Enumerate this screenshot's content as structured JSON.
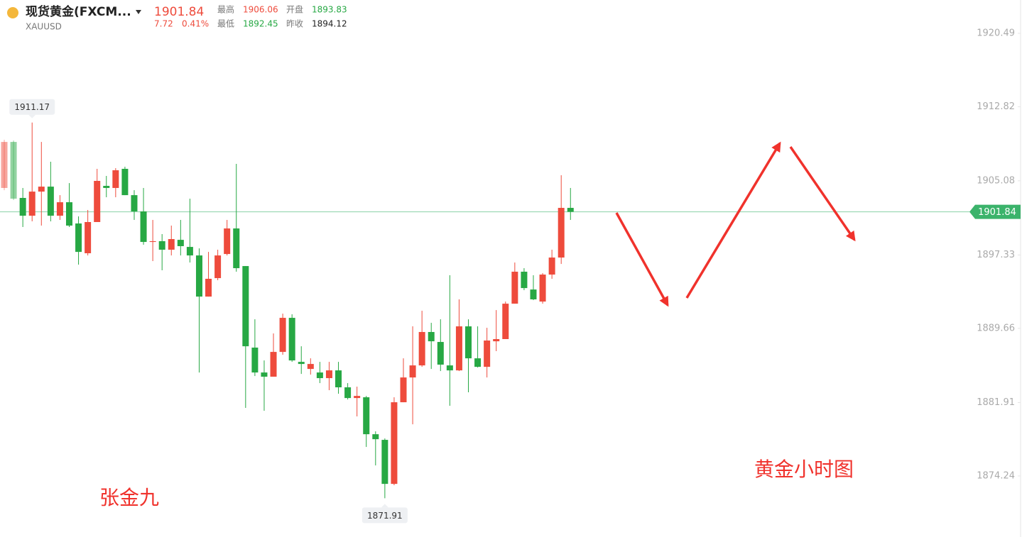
{
  "header": {
    "name": "现货黄金(FXCM...",
    "symbol": "XAUUSD",
    "price": "1901.84",
    "change": "7.72",
    "change_pct": "0.41%",
    "high_label": "最高",
    "high": "1906.06",
    "open_label": "开盘",
    "open": "1893.83",
    "low_label": "最低",
    "low": "1892.45",
    "prev_close_label": "昨收",
    "prev_close": "1894.12"
  },
  "chart_data": {
    "type": "candlestick",
    "up_color": "#ee4b3c",
    "down_color": "#27a844",
    "open": [
      1904.33,
      1909.14,
      1903.29,
      1901.43,
      1903.95,
      1904.47,
      1901.43,
      1902.84,
      1900.62,
      1897.51,
      1900.77,
      1904.55,
      1904.33,
      1906.33,
      1903.58,
      1901.88,
      1898.69,
      1898.77,
      1897.88,
      1898.91,
      1898.17,
      1897.28,
      1892.98,
      1894.91,
      1897.43,
      1900.1,
      1896.17,
      1887.65,
      1885.05,
      1884.61,
      1887.2,
      1890.76,
      1886.16,
      1885.42,
      1885.05,
      1884.46,
      1885.27,
      1883.5,
      1882.38,
      1882.46,
      1878.6,
      1878.01,
      1873.41,
      1881.94,
      1884.53,
      1885.79,
      1889.28,
      1888.24,
      1885.79,
      1885.27,
      1889.87,
      1886.53,
      1885.64,
      1888.31,
      1888.54,
      1892.24,
      1895.58,
      1893.72,
      1892.46,
      1895.28,
      1897.06,
      1902.25
    ],
    "high": [
      1909.37,
      1909.29,
      1904.33,
      1911.17,
      1909.14,
      1907.07,
      1903.58,
      1904.84,
      1901.36,
      1902.03,
      1906.33,
      1905.59,
      1906.4,
      1906.55,
      1904.1,
      1904.33,
      1900.99,
      1899.51,
      1900.4,
      1900.99,
      1903.21,
      1898.02,
      1897.65,
      1897.88,
      1900.99,
      1906.85,
      1896.17,
      1890.61,
      1886.31,
      1889.13,
      1891.2,
      1891.13,
      1887.79,
      1886.53,
      1886.16,
      1886.16,
      1886.16,
      1883.94,
      1883.57,
      1882.6,
      1878.9,
      1878.16,
      1882.46,
      1886.53,
      1889.87,
      1891.5,
      1890.24,
      1890.61,
      1895.21,
      1892.69,
      1890.61,
      1889.87,
      1889.72,
      1891.57,
      1892.46,
      1896.54,
      1895.95,
      1895.21,
      1895.43,
      1897.88,
      1905.66,
      1904.33
    ],
    "low": [
      1904.1,
      1903.07,
      1900.25,
      1900.84,
      1900.4,
      1900.84,
      1900.99,
      1900.25,
      1896.32,
      1897.28,
      1900.77,
      1903.36,
      1903.36,
      1903.58,
      1900.99,
      1898.4,
      1896.69,
      1895.73,
      1897.28,
      1897.28,
      1896.54,
      1885.05,
      1892.98,
      1894.69,
      1897.28,
      1895.58,
      1881.35,
      1884.68,
      1881.05,
      1884.61,
      1886.9,
      1886.16,
      1884.9,
      1884.83,
      1883.94,
      1883.2,
      1882.83,
      1882.23,
      1880.46,
      1877.27,
      1875.34,
      1871.91,
      1873.27,
      1881.94,
      1879.64,
      1885.64,
      1885.42,
      1885.2,
      1881.57,
      1885.2,
      1882.98,
      1885.57,
      1884.53,
      1887.28,
      1888.54,
      1892.24,
      1893.65,
      1892.61,
      1892.24,
      1894.84,
      1896.39,
      1900.99
    ],
    "close": [
      1909.14,
      1903.21,
      1901.43,
      1903.95,
      1904.47,
      1901.43,
      1902.84,
      1900.4,
      1897.65,
      1900.77,
      1905.07,
      1904.33,
      1906.18,
      1903.58,
      1901.88,
      1898.69,
      1898.77,
      1897.88,
      1898.99,
      1898.25,
      1897.28,
      1892.98,
      1894.84,
      1897.28,
      1900.1,
      1895.95,
      1887.79,
      1885.05,
      1884.61,
      1887.2,
      1890.76,
      1886.31,
      1885.94,
      1885.94,
      1884.46,
      1885.27,
      1883.5,
      1882.38,
      1882.6,
      1878.6,
      1878.08,
      1873.41,
      1881.94,
      1884.53,
      1885.79,
      1889.28,
      1888.31,
      1885.87,
      1885.27,
      1889.87,
      1886.53,
      1885.64,
      1888.39,
      1888.54,
      1892.24,
      1895.58,
      1893.87,
      1892.69,
      1895.28,
      1897.06,
      1902.25,
      1901.84
    ],
    "max_label": 1911.17,
    "min_label": 1871.91,
    "last_price": 1901.84,
    "last_price_color": "#3bb36b",
    "ylim": [
      1867.86,
      1923.97
    ],
    "yticks": [
      1874.24,
      1881.91,
      1889.66,
      1897.33,
      1905.08,
      1912.82,
      1920.49
    ],
    "grid": false,
    "annotations": [
      "黄金小时图",
      "张金九"
    ]
  }
}
